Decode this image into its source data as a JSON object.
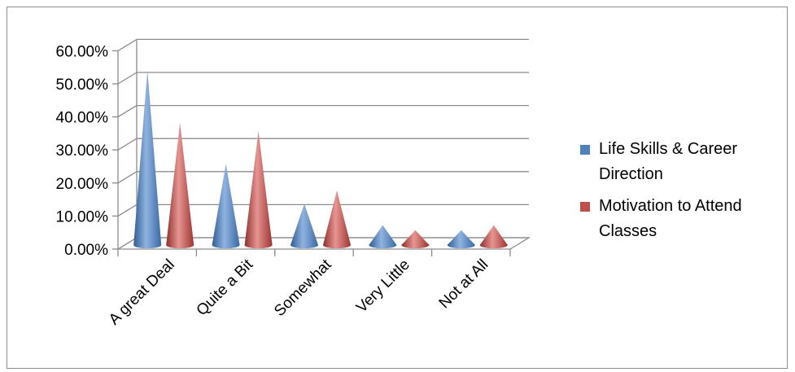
{
  "chart_data": {
    "type": "bar",
    "subtype": "3d-cone",
    "categories": [
      "A great Deal",
      "Quite a Bit",
      "Somewhat",
      "Very Little",
      "Not at All"
    ],
    "series": [
      {
        "name": "Life Skills & Career Direction",
        "color": "#4f81bd",
        "values": [
          0.53,
          0.245,
          0.125,
          0.06,
          0.045
        ]
      },
      {
        "name": "Motivation to Attend Classes",
        "color": "#c0504d",
        "values": [
          0.37,
          0.345,
          0.165,
          0.045,
          0.06
        ]
      }
    ],
    "yticks": [
      "0.00%",
      "10.00%",
      "20.00%",
      "30.00%",
      "40.00%",
      "50.00%",
      "60.00%"
    ],
    "ylim": [
      0,
      0.6
    ],
    "grid": true,
    "legend_position": "right"
  }
}
